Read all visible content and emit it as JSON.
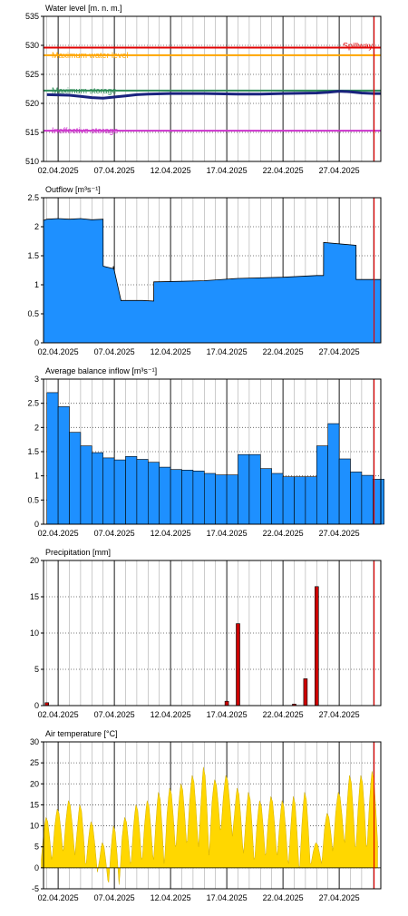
{
  "chart_data": [
    {
      "id": "water",
      "type": "line",
      "title": "Water level [m. n. m.]",
      "ylim": [
        510,
        535
      ],
      "yticks": [
        510,
        515,
        520,
        525,
        530,
        535
      ],
      "x_dates": [
        "02.04.2025",
        "07.04.2025",
        "12.04.2025",
        "17.04.2025",
        "22.04.2025",
        "27.04.2025"
      ],
      "x_range_days": [
        0.7,
        30.7
      ],
      "now_day": 30.1,
      "grid": "vertical daily, dotted major",
      "reference_lines": [
        {
          "name": "Maximum water level",
          "value": 528.3,
          "color": "#ffa500"
        },
        {
          "name": "Spillway",
          "value": 529.6,
          "color": "#e00000"
        },
        {
          "name": "Maximum storage",
          "value": 522.2,
          "color": "#2e8b57"
        },
        {
          "name": "Ineffective storage",
          "value": 515.3,
          "color": "#cc33cc"
        }
      ],
      "series": [
        {
          "name": "",
          "color": "#1a237e",
          "x": [
            1,
            3,
            4,
            5,
            6,
            7,
            8,
            9,
            10,
            12,
            15,
            18,
            20,
            22,
            25,
            26,
            27,
            28,
            29,
            30.1,
            30.7
          ],
          "y": [
            521.5,
            521.4,
            521.2,
            521.0,
            520.9,
            521.1,
            521.3,
            521.5,
            521.6,
            521.7,
            521.7,
            521.6,
            521.6,
            521.7,
            521.8,
            521.9,
            522.1,
            522.0,
            521.8,
            521.7,
            521.7
          ]
        }
      ]
    },
    {
      "id": "outflow",
      "type": "area",
      "title": "Outflow [m³s⁻¹]",
      "ylim": [
        0,
        2.5
      ],
      "yticks": [
        0,
        0.5,
        1,
        1.5,
        2,
        2.5
      ],
      "x_dates": [
        "02.04.2025",
        "07.04.2025",
        "12.04.2025",
        "17.04.2025",
        "22.04.2025",
        "27.04.2025"
      ],
      "x_range_days": [
        0.7,
        30.7
      ],
      "now_day": 30.1,
      "series": [
        {
          "name": "",
          "color": "#1e90ff",
          "x": [
            0.7,
            1.0,
            2.0,
            3.0,
            4.0,
            5.0,
            6.0,
            6.01,
            6.9,
            6.91,
            7.6,
            7.61,
            9.5,
            10.5,
            10.51,
            13,
            15,
            18,
            22,
            25,
            25.6,
            25.61,
            28.5,
            28.51,
            30.7
          ],
          "y": [
            2.11,
            2.13,
            2.14,
            2.13,
            2.14,
            2.12,
            2.13,
            1.32,
            1.28,
            1.32,
            0.72,
            0.73,
            0.73,
            0.72,
            1.05,
            1.06,
            1.07,
            1.11,
            1.13,
            1.16,
            1.16,
            1.73,
            1.68,
            1.09,
            1.09
          ]
        }
      ]
    },
    {
      "id": "inflow",
      "type": "area",
      "title": "Average balance inflow  [m³s⁻¹]",
      "ylim": [
        0,
        3
      ],
      "yticks": [
        0,
        0.5,
        1,
        1.5,
        2,
        2.5,
        3
      ],
      "x_dates": [
        "02.04.2025",
        "07.04.2025",
        "12.04.2025",
        "17.04.2025",
        "22.04.2025",
        "27.04.2025"
      ],
      "x_range_days": [
        0.7,
        30.7
      ],
      "now_day": 30.1,
      "series": [
        {
          "name": "",
          "color": "#1e90ff",
          "day_start": 1,
          "daily_values": [
            2.72,
            2.43,
            1.9,
            1.62,
            1.48,
            1.37,
            1.33,
            1.4,
            1.34,
            1.28,
            1.18,
            1.13,
            1.12,
            1.1,
            1.05,
            1.02,
            1.02,
            1.44,
            1.44,
            1.15,
            1.05,
            0.98,
            0.98,
            0.98,
            1.62,
            2.08,
            1.35,
            1.08,
            1.01,
            0.93
          ]
        }
      ]
    },
    {
      "id": "precip",
      "type": "bar",
      "title": "Precipitation [mm]",
      "ylim": [
        0,
        20
      ],
      "yticks": [
        0,
        5,
        10,
        15,
        20
      ],
      "x_dates": [
        "02.04.2025",
        "07.04.2025",
        "12.04.2025",
        "17.04.2025",
        "22.04.2025",
        "27.04.2025"
      ],
      "x_range_days": [
        0.7,
        30.7
      ],
      "now_day": 30.1,
      "color": "#cc0000",
      "x": [
        1,
        17,
        18,
        23,
        24,
        25
      ],
      "values": [
        0.4,
        0.6,
        11.3,
        0.2,
        3.7,
        16.4
      ]
    },
    {
      "id": "temp",
      "type": "area",
      "title": "Air temperature [°C]",
      "ylim": [
        -5,
        30
      ],
      "yticks": [
        -5,
        0,
        5,
        10,
        15,
        20,
        25,
        30
      ],
      "x_dates": [
        "02.04.2025",
        "07.04.2025",
        "12.04.2025",
        "17.04.2025",
        "22.04.2025",
        "27.04.2025"
      ],
      "x_range_days": [
        0.7,
        30.7
      ],
      "now_day": 30.1,
      "series": [
        {
          "name": "",
          "color": "#ffd700",
          "day_start": 1,
          "daily_max": [
            12,
            14,
            16,
            15,
            11,
            6,
            10,
            12,
            15,
            16,
            18,
            19,
            20,
            22,
            24,
            21,
            22,
            19,
            18,
            16,
            17,
            16,
            17,
            18,
            6,
            13,
            18,
            22,
            22,
            23
          ],
          "daily_min": [
            2,
            4,
            5,
            1,
            1,
            -3,
            -4,
            1,
            2,
            3,
            1,
            5,
            6,
            7,
            3,
            9,
            10,
            5,
            2,
            3,
            4,
            2,
            0,
            1,
            1,
            4,
            7,
            5,
            5,
            6
          ]
        }
      ]
    }
  ]
}
